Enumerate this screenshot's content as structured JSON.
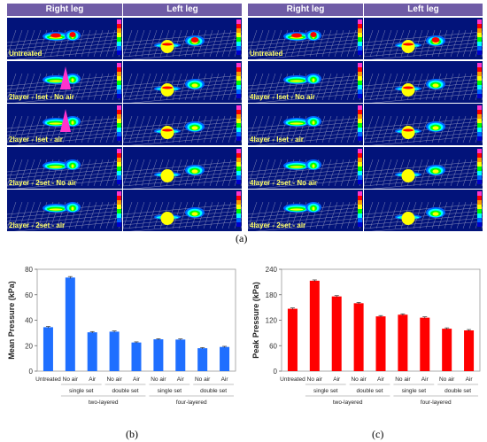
{
  "heatmaps": [
    {
      "headers": [
        "Right leg",
        "Left leg"
      ],
      "rows": [
        "Untreated",
        "2layer - lset - No air",
        "2layer - lset - air",
        "2layer - 2set - No air",
        "2layer - 2set - air"
      ]
    },
    {
      "headers": [
        "Right leg",
        "Left leg"
      ],
      "rows": [
        "Untreated",
        "4layer - lset - No air",
        "4layer - lset - air",
        "4layer - 2set - No air",
        "4layer - 2set - air"
      ]
    }
  ],
  "colors": {
    "header_bg": "#6f5ca6",
    "map_bg": "#02137a",
    "label_text": "#ffff66",
    "mean_bar": "#1f6fff",
    "peak_bar": "#ff0000",
    "scale": [
      "#ff33cc",
      "#ff0000",
      "#ff9900",
      "#ffff00",
      "#00ff00",
      "#00ffff",
      "#0066ff",
      "#0000cc"
    ]
  },
  "captions": {
    "a": "(a)",
    "b": "(b)",
    "c": "(c)"
  },
  "chart_data": [
    {
      "type": "bar",
      "ylabel": "Mean Pressure (kPa)",
      "ylim": [
        0,
        80
      ],
      "yticks": [
        0,
        20,
        40,
        60,
        80
      ],
      "categories": [
        "Untreated",
        "No air",
        "Air",
        "No air",
        "Air",
        "No air",
        "Air",
        "No air",
        "Air"
      ],
      "values": [
        34.5,
        73.5,
        30.5,
        31.0,
        22.5,
        25.0,
        24.8,
        18.0,
        19.0
      ],
      "errors": [
        0.6,
        0.8,
        0.6,
        0.6,
        0.5,
        0.5,
        0.5,
        0.5,
        0.5
      ],
      "group_labels_level1": [
        "single set",
        "double set",
        "single set",
        "double set"
      ],
      "group_labels_level2": [
        "two-layered",
        "four-layered"
      ]
    },
    {
      "type": "bar",
      "ylabel": "Peak Pressure (kPa)",
      "ylim": [
        0,
        240
      ],
      "yticks": [
        0,
        60,
        120,
        180,
        240
      ],
      "categories": [
        "Untreated",
        "No air",
        "Air",
        "No air",
        "Air",
        "No air",
        "Air",
        "No air",
        "Air"
      ],
      "values": [
        147,
        213,
        176,
        160,
        129,
        133,
        126,
        100,
        96
      ],
      "errors": [
        2,
        2,
        2,
        2,
        2,
        2,
        2,
        2,
        2
      ],
      "group_labels_level1": [
        "single set",
        "double set",
        "single set",
        "double set"
      ],
      "group_labels_level2": [
        "two-layered",
        "four-layered"
      ]
    }
  ]
}
